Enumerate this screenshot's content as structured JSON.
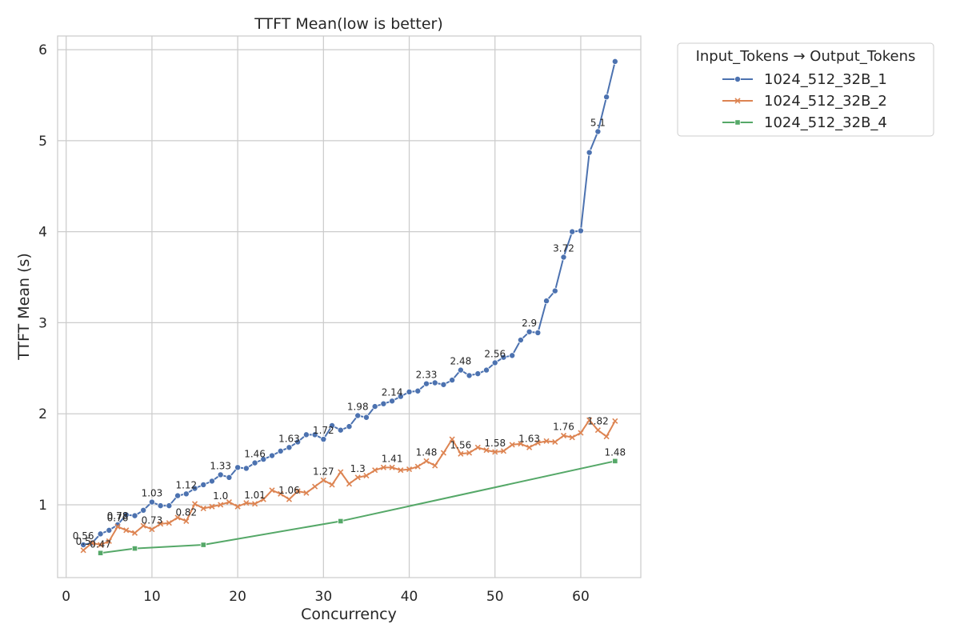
{
  "chart_data": {
    "type": "line",
    "title": "TTFT Mean(low is better)",
    "xlabel": "Concurrency",
    "ylabel": "TTFT Mean (s)",
    "xlim": [
      -1,
      67
    ],
    "ylim": [
      0.2,
      6.15
    ],
    "xticks": [
      0,
      10,
      20,
      30,
      40,
      50,
      60
    ],
    "yticks": [
      1,
      2,
      3,
      4,
      5,
      6
    ],
    "grid": true,
    "legend": {
      "title": "Input_Tokens → Output_Tokens",
      "placement": "outside-top-right"
    },
    "series": [
      {
        "name": "1024_512_32B_1",
        "color": "#4c72b0",
        "marker": "circle",
        "x": [
          2,
          3,
          4,
          5,
          6,
          7,
          8,
          9,
          10,
          11,
          12,
          13,
          14,
          15,
          16,
          17,
          18,
          19,
          20,
          21,
          22,
          23,
          24,
          25,
          26,
          27,
          28,
          29,
          30,
          31,
          32,
          33,
          34,
          35,
          36,
          37,
          38,
          39,
          40,
          41,
          42,
          43,
          44,
          45,
          46,
          47,
          48,
          49,
          50,
          51,
          52,
          53,
          54,
          55,
          56,
          57,
          58,
          59,
          60,
          61,
          62,
          63,
          64
        ],
        "y": [
          0.56,
          0.58,
          0.68,
          0.72,
          0.78,
          0.89,
          0.88,
          0.94,
          1.03,
          0.99,
          0.99,
          1.1,
          1.12,
          1.18,
          1.22,
          1.26,
          1.33,
          1.3,
          1.41,
          1.4,
          1.46,
          1.5,
          1.54,
          1.59,
          1.63,
          1.69,
          1.77,
          1.77,
          1.72,
          1.87,
          1.82,
          1.86,
          1.98,
          1.96,
          2.08,
          2.11,
          2.14,
          2.19,
          2.24,
          2.25,
          2.33,
          2.34,
          2.32,
          2.37,
          2.48,
          2.42,
          2.44,
          2.48,
          2.56,
          2.62,
          2.64,
          2.81,
          2.9,
          2.89,
          3.24,
          3.35,
          3.72,
          4.0,
          4.01,
          4.87,
          5.1,
          5.48,
          5.87
        ],
        "labels": [
          {
            "x": 2,
            "y": 0.56,
            "text": "0.56"
          },
          {
            "x": 6,
            "y": 0.78,
            "text": "0.78"
          },
          {
            "x": 10,
            "y": 1.03,
            "text": "1.03"
          },
          {
            "x": 14,
            "y": 1.12,
            "text": "1.12"
          },
          {
            "x": 18,
            "y": 1.33,
            "text": "1.33"
          },
          {
            "x": 22,
            "y": 1.46,
            "text": "1.46"
          },
          {
            "x": 26,
            "y": 1.63,
            "text": "1.63"
          },
          {
            "x": 30,
            "y": 1.72,
            "text": "1.72"
          },
          {
            "x": 34,
            "y": 1.98,
            "text": "1.98"
          },
          {
            "x": 38,
            "y": 2.14,
            "text": "2.14"
          },
          {
            "x": 42,
            "y": 2.33,
            "text": "2.33"
          },
          {
            "x": 46,
            "y": 2.48,
            "text": "2.48"
          },
          {
            "x": 50,
            "y": 2.56,
            "text": "2.56"
          },
          {
            "x": 54,
            "y": 2.9,
            "text": "2.9"
          },
          {
            "x": 58,
            "y": 3.72,
            "text": "3.72"
          },
          {
            "x": 62,
            "y": 5.1,
            "text": "5.1"
          }
        ]
      },
      {
        "name": "1024_512_32B_2",
        "color": "#dd8452",
        "marker": "x",
        "x": [
          2,
          3,
          4,
          5,
          6,
          7,
          8,
          9,
          10,
          11,
          12,
          13,
          14,
          15,
          16,
          17,
          18,
          19,
          20,
          21,
          22,
          23,
          24,
          25,
          26,
          27,
          28,
          29,
          30,
          31,
          32,
          33,
          34,
          35,
          36,
          37,
          38,
          39,
          40,
          41,
          42,
          43,
          44,
          45,
          46,
          47,
          48,
          49,
          50,
          51,
          52,
          53,
          54,
          55,
          56,
          57,
          58,
          59,
          60,
          61,
          62,
          63,
          64
        ],
        "y": [
          0.5,
          0.58,
          0.56,
          0.6,
          0.76,
          0.72,
          0.69,
          0.77,
          0.73,
          0.79,
          0.8,
          0.86,
          0.82,
          1.01,
          0.96,
          0.98,
          1.0,
          1.03,
          0.98,
          1.02,
          1.01,
          1.06,
          1.16,
          1.12,
          1.06,
          1.15,
          1.13,
          1.2,
          1.27,
          1.22,
          1.36,
          1.23,
          1.3,
          1.32,
          1.38,
          1.41,
          1.41,
          1.38,
          1.39,
          1.42,
          1.48,
          1.43,
          1.57,
          1.72,
          1.56,
          1.57,
          1.63,
          1.6,
          1.58,
          1.59,
          1.66,
          1.67,
          1.63,
          1.68,
          1.7,
          1.69,
          1.76,
          1.74,
          1.79,
          1.93,
          1.82,
          1.75,
          1.92
        ],
        "labels": [
          {
            "x": 2,
            "y": 0.5,
            "text": "0.5"
          },
          {
            "x": 6,
            "y": 0.76,
            "text": "0.76"
          },
          {
            "x": 10,
            "y": 0.73,
            "text": "0.73"
          },
          {
            "x": 14,
            "y": 0.82,
            "text": "0.82"
          },
          {
            "x": 18,
            "y": 1.0,
            "text": "1.0"
          },
          {
            "x": 22,
            "y": 1.01,
            "text": "1.01"
          },
          {
            "x": 26,
            "y": 1.06,
            "text": "1.06"
          },
          {
            "x": 30,
            "y": 1.27,
            "text": "1.27"
          },
          {
            "x": 34,
            "y": 1.3,
            "text": "1.3"
          },
          {
            "x": 38,
            "y": 1.41,
            "text": "1.41"
          },
          {
            "x": 42,
            "y": 1.48,
            "text": "1.48"
          },
          {
            "x": 46,
            "y": 1.56,
            "text": "1.56"
          },
          {
            "x": 50,
            "y": 1.58,
            "text": "1.58"
          },
          {
            "x": 54,
            "y": 1.63,
            "text": "1.63"
          },
          {
            "x": 58,
            "y": 1.76,
            "text": "1.76"
          },
          {
            "x": 62,
            "y": 1.82,
            "text": "1.82"
          }
        ]
      },
      {
        "name": "1024_512_32B_4",
        "color": "#55a868",
        "marker": "square",
        "x": [
          4,
          8,
          16,
          32,
          64
        ],
        "y": [
          0.47,
          0.52,
          0.56,
          0.82,
          1.48
        ],
        "labels": [
          {
            "x": 4,
            "y": 0.47,
            "text": "0.47"
          },
          {
            "x": 64,
            "y": 1.48,
            "text": "1.48"
          }
        ]
      }
    ]
  }
}
